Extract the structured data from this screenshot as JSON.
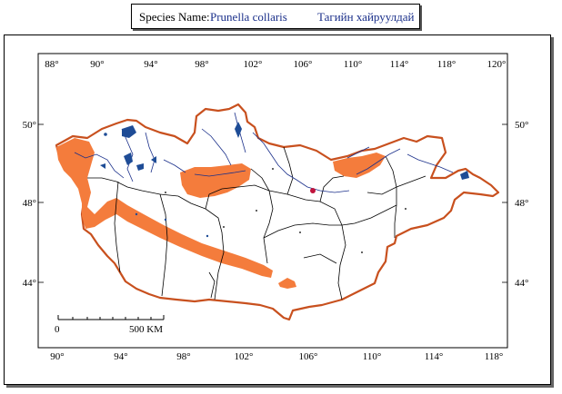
{
  "header": {
    "label": "Species Name:",
    "scientific_name": "Prunella collaris",
    "local_name": "Тагийн хайруулдай"
  },
  "map": {
    "top_longitudes": [
      "88°",
      "90°",
      "94°",
      "98°",
      "102°",
      "106°",
      "110°",
      "114°",
      "118°",
      "120°"
    ],
    "bottom_longitudes": [
      "90°",
      "94°",
      "98°",
      "102°",
      "106°",
      "110°",
      "114°",
      "118°"
    ],
    "left_latitudes": [
      "50°",
      "48°",
      "44°"
    ],
    "right_latitudes": [
      "50°",
      "48°",
      "44°"
    ],
    "scale_bar": {
      "start": "0",
      "end": "500 KM"
    },
    "colors": {
      "border": "#c8501e",
      "range": "#f47c3c",
      "lakes": "#1e4c96",
      "rivers": "#1a2f8a",
      "provinces": "#000000"
    }
  }
}
